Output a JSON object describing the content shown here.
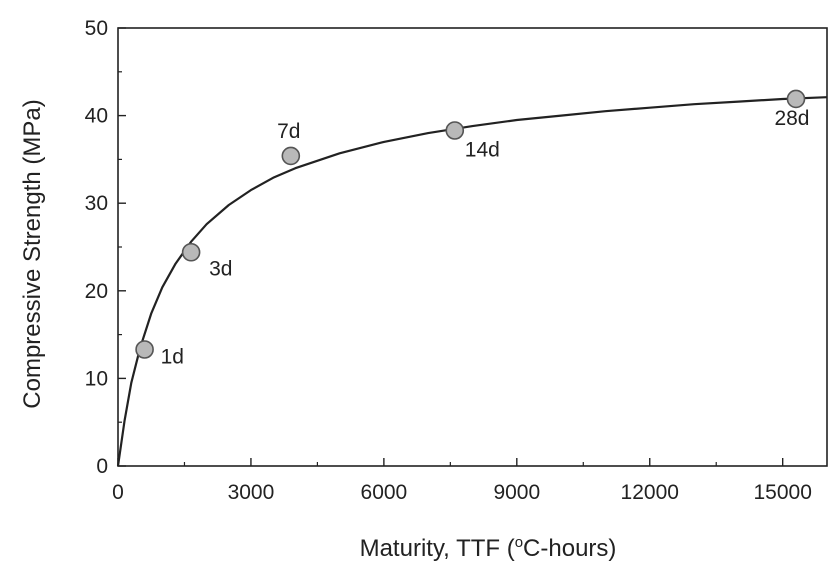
{
  "chart_data": {
    "type": "scatter",
    "title": "",
    "xlabel": "Maturity, TTF (",
    "xlabel_sup": "o",
    "xlabel_tail": "C-hours)",
    "ylabel": "Compressive Strength (MPa)",
    "xlim": [
      0,
      16000
    ],
    "ylim": [
      0,
      50
    ],
    "x_ticks": [
      0,
      3000,
      6000,
      9000,
      12000,
      15000
    ],
    "x_tick_labels": [
      "0",
      "3000",
      "6000",
      "9000",
      "12000",
      "15000"
    ],
    "y_ticks": [
      0,
      10,
      20,
      30,
      40,
      50
    ],
    "y_tick_labels": [
      "0",
      "10",
      "20",
      "30",
      "40",
      "50"
    ],
    "grid": false,
    "points": [
      {
        "x": 600,
        "y": 13.3,
        "label": "1d"
      },
      {
        "x": 1650,
        "y": 24.4,
        "label": "3d"
      },
      {
        "x": 3900,
        "y": 35.4,
        "label": "7d"
      },
      {
        "x": 7600,
        "y": 38.3,
        "label": "14d"
      },
      {
        "x": 15300,
        "y": 41.9,
        "label": "28d"
      }
    ],
    "fit_curve": [
      [
        0,
        0
      ],
      [
        150,
        5.2
      ],
      [
        300,
        9.5
      ],
      [
        500,
        13.5
      ],
      [
        750,
        17.4
      ],
      [
        1000,
        20.4
      ],
      [
        1300,
        23.1
      ],
      [
        1650,
        25.6
      ],
      [
        2000,
        27.6
      ],
      [
        2500,
        29.8
      ],
      [
        3000,
        31.5
      ],
      [
        3500,
        32.9
      ],
      [
        4000,
        34.0
      ],
      [
        5000,
        35.7
      ],
      [
        6000,
        37.0
      ],
      [
        7000,
        38.0
      ],
      [
        8000,
        38.8
      ],
      [
        9000,
        39.5
      ],
      [
        10000,
        40.0
      ],
      [
        11000,
        40.5
      ],
      [
        12000,
        40.9
      ],
      [
        13000,
        41.3
      ],
      [
        14000,
        41.6
      ],
      [
        15000,
        41.9
      ],
      [
        16000,
        42.1
      ]
    ],
    "colors": {
      "marker_fill": "#b9b9b9",
      "marker_stroke": "#555555",
      "line": "#222222",
      "axis": "#222222"
    }
  }
}
